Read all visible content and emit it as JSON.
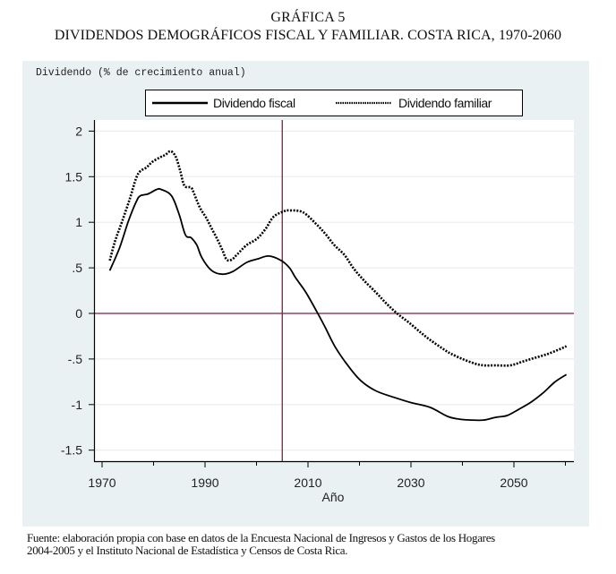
{
  "header": {
    "title": "GRÁFICA 5",
    "subtitle": "DIVIDENDOS DEMOGRÁFICOS FISCAL Y FAMILIAR. COSTA RICA, 1970-2060"
  },
  "footer": {
    "line1": "Fuente: elaboración propia con base en datos de la Encuesta Nacional de Ingresos y Gastos de los Hogares",
    "line2": "2004-2005 y el Instituto Nacional de Estadística y Censos de Costa Rica."
  },
  "colors": {
    "panel_background": "#eaf1f3",
    "plot_background": "#ffffff",
    "reference_line": "#7a1f3d",
    "series": "#000000",
    "gridline": "#e6eced"
  },
  "chart_data": {
    "type": "line",
    "title": "DIVIDENDOS DEMOGRÁFICOS FISCAL Y FAMILIAR. COSTA RICA, 1970-2060",
    "xlabel": "Año",
    "ylabel": "Dividendo (% de crecimiento anual)",
    "xlim": [
      1968.5,
      2062
    ],
    "ylim": [
      -1.6,
      2.15
    ],
    "x_ticks": [
      1970,
      1990,
      2010,
      2030,
      2050
    ],
    "x_tick_labels": [
      "1970",
      "1990",
      "2010",
      "2030",
      "2050"
    ],
    "x_minor_ticks": [
      1980,
      2000,
      2020,
      2040,
      2060
    ],
    "y_ticks": [
      -1.5,
      -1,
      -0.5,
      0,
      0.5,
      1,
      1.5,
      2
    ],
    "y_tick_labels": [
      "-1.5",
      "-1",
      "-.5",
      "0",
      ".5",
      "1",
      "1.5",
      "2"
    ],
    "grid": true,
    "legend_position": "top",
    "reference_lines": [
      {
        "axis": "x",
        "value": 2005
      },
      {
        "axis": "y",
        "value": 0
      }
    ],
    "series": [
      {
        "name": "Dividendo fiscal",
        "style": "solid",
        "points": [
          [
            1971.5,
            0.47
          ],
          [
            1973.4,
            0.72
          ],
          [
            1975.1,
            1.01
          ],
          [
            1976.6,
            1.22
          ],
          [
            1977.4,
            1.29
          ],
          [
            1978.9,
            1.31
          ],
          [
            1980.6,
            1.36
          ],
          [
            1981.5,
            1.36
          ],
          [
            1983.5,
            1.29
          ],
          [
            1985.0,
            1.08
          ],
          [
            1986.2,
            0.86
          ],
          [
            1987.3,
            0.83
          ],
          [
            1988.4,
            0.75
          ],
          [
            1989.4,
            0.61
          ],
          [
            1991.3,
            0.47
          ],
          [
            1993.4,
            0.43
          ],
          [
            1995.4,
            0.46
          ],
          [
            1998.1,
            0.56
          ],
          [
            2000.4,
            0.6
          ],
          [
            2002.4,
            0.63
          ],
          [
            2004.8,
            0.58
          ],
          [
            2006.4,
            0.5
          ],
          [
            2007.6,
            0.39
          ],
          [
            2009.6,
            0.23
          ],
          [
            2011.9,
            0.0
          ],
          [
            2013.4,
            -0.16
          ],
          [
            2015.4,
            -0.38
          ],
          [
            2018.0,
            -0.59
          ],
          [
            2020.3,
            -0.74
          ],
          [
            2023.2,
            -0.85
          ],
          [
            2026.7,
            -0.92
          ],
          [
            2030.1,
            -0.98
          ],
          [
            2033.7,
            -1.03
          ],
          [
            2037.1,
            -1.13
          ],
          [
            2039.4,
            -1.16
          ],
          [
            2041.7,
            -1.17
          ],
          [
            2044.1,
            -1.17
          ],
          [
            2046.4,
            -1.14
          ],
          [
            2048.7,
            -1.12
          ],
          [
            2051.0,
            -1.05
          ],
          [
            2053.4,
            -0.97
          ],
          [
            2055.7,
            -0.87
          ],
          [
            2058.0,
            -0.75
          ],
          [
            2060.2,
            -0.67
          ]
        ]
      },
      {
        "name": "Dividendo familiar",
        "style": "dotted",
        "points": [
          [
            1971.5,
            0.58
          ],
          [
            1972.5,
            0.79
          ],
          [
            1973.9,
            1.01
          ],
          [
            1975.4,
            1.26
          ],
          [
            1976.6,
            1.48
          ],
          [
            1977.4,
            1.56
          ],
          [
            1978.6,
            1.6
          ],
          [
            1979.7,
            1.66
          ],
          [
            1981.2,
            1.71
          ],
          [
            1982.3,
            1.74
          ],
          [
            1983.3,
            1.78
          ],
          [
            1984.3,
            1.72
          ],
          [
            1985.2,
            1.56
          ],
          [
            1986.0,
            1.4
          ],
          [
            1987.3,
            1.38
          ],
          [
            1987.9,
            1.31
          ],
          [
            1989.0,
            1.16
          ],
          [
            1990.2,
            1.05
          ],
          [
            1991.3,
            0.93
          ],
          [
            1992.5,
            0.8
          ],
          [
            1993.4,
            0.69
          ],
          [
            1994.2,
            0.59
          ],
          [
            1995.2,
            0.59
          ],
          [
            1996.3,
            0.65
          ],
          [
            1998.1,
            0.75
          ],
          [
            2000.1,
            0.82
          ],
          [
            2001.8,
            0.93
          ],
          [
            2003.3,
            1.06
          ],
          [
            2005.3,
            1.12
          ],
          [
            2006.4,
            1.13
          ],
          [
            2009.0,
            1.11
          ],
          [
            2011.6,
            0.98
          ],
          [
            2013.4,
            0.87
          ],
          [
            2015.1,
            0.75
          ],
          [
            2017.1,
            0.64
          ],
          [
            2018.9,
            0.49
          ],
          [
            2020.9,
            0.36
          ],
          [
            2023.2,
            0.23
          ],
          [
            2025.2,
            0.11
          ],
          [
            2027.3,
            0.0
          ],
          [
            2029.6,
            -0.1
          ],
          [
            2031.9,
            -0.21
          ],
          [
            2033.7,
            -0.29
          ],
          [
            2036.0,
            -0.38
          ],
          [
            2037.7,
            -0.44
          ],
          [
            2040.0,
            -0.5
          ],
          [
            2042.4,
            -0.55
          ],
          [
            2044.1,
            -0.57
          ],
          [
            2046.4,
            -0.57
          ],
          [
            2049.3,
            -0.57
          ],
          [
            2051.6,
            -0.53
          ],
          [
            2053.9,
            -0.49
          ],
          [
            2056.3,
            -0.45
          ],
          [
            2058.6,
            -0.4
          ],
          [
            2060.2,
            -0.36
          ]
        ]
      }
    ]
  }
}
